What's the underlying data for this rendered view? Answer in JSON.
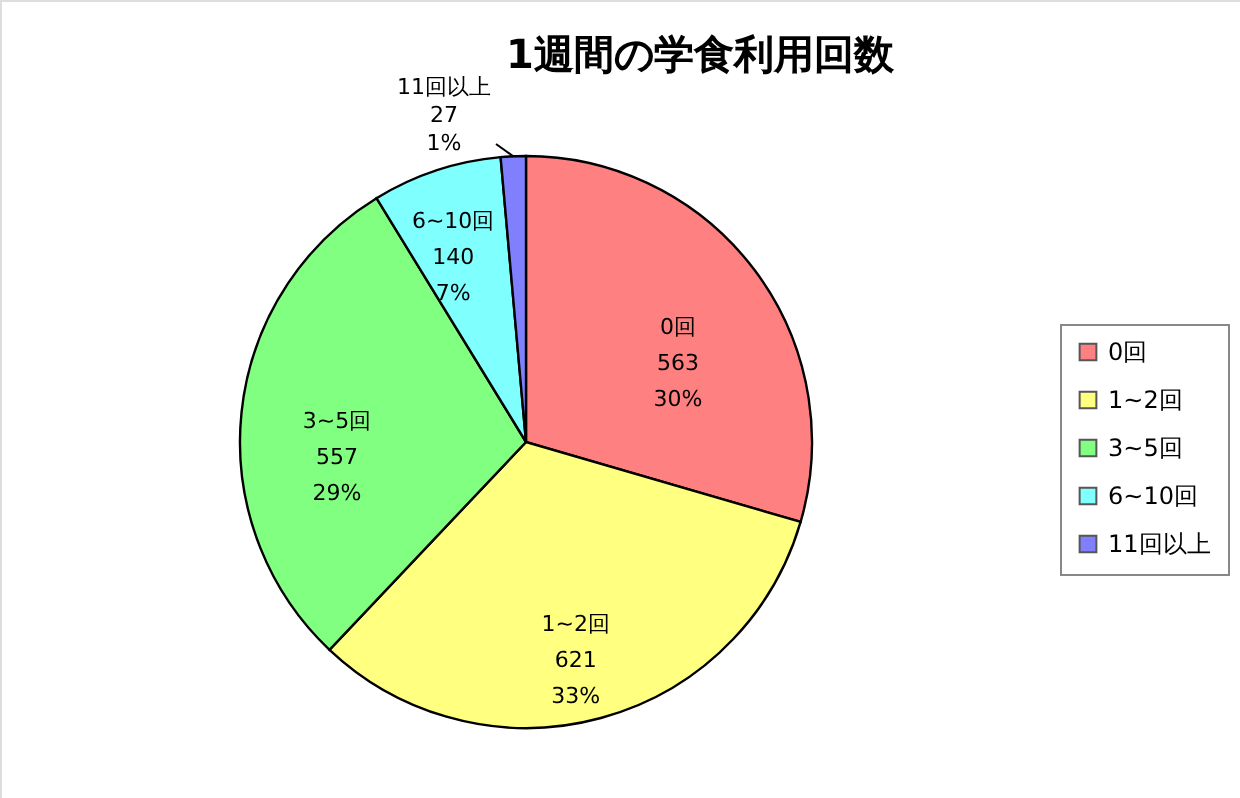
{
  "chart_data": {
    "type": "pie",
    "title": "1週間の学食利用回数",
    "categories": [
      "0回",
      "1~2回",
      "3~5回",
      "6~10回",
      "11回以上"
    ],
    "values": [
      563,
      621,
      557,
      140,
      27
    ],
    "value_labels": [
      "563\n30%",
      "621\n33%",
      "557\n29%",
      "140\n7%",
      "27\n1%"
    ],
    "colors": [
      "#ff8080",
      "#ffff80",
      "#80ff80",
      "#80ffff",
      "#8080ff"
    ],
    "legend": "right"
  }
}
